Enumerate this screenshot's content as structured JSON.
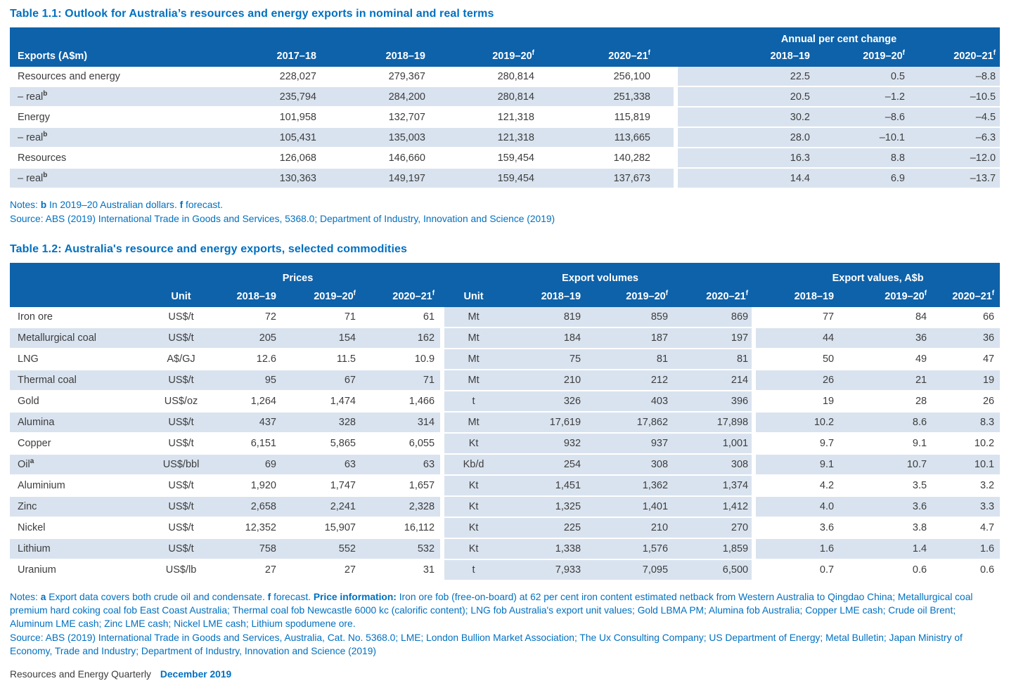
{
  "table1": {
    "title": "Table 1.1: Outlook for Australia’s resources and energy exports in nominal and real terms",
    "group_header": "Annual per cent change",
    "columns": [
      {
        "text": "Exports (A$m)",
        "sup": ""
      },
      {
        "text": "2017–18",
        "sup": ""
      },
      {
        "text": "2018–19",
        "sup": ""
      },
      {
        "text": "2019–20",
        "sup": "f"
      },
      {
        "text": "2020–21",
        "sup": "f"
      },
      {
        "text": "2018–19",
        "sup": ""
      },
      {
        "text": "2019–20",
        "sup": "f"
      },
      {
        "text": "2020–21",
        "sup": "f"
      }
    ],
    "rows": [
      {
        "label": "Resources and energy",
        "label_sup": "",
        "values": [
          "228,027",
          "279,367",
          "280,814",
          "256,100",
          "22.5",
          "0.5",
          "–8.8"
        ]
      },
      {
        "label": "– real",
        "label_sup": "b",
        "values": [
          "235,794",
          "284,200",
          "280,814",
          "251,338",
          "20.5",
          "–1.2",
          "–10.5"
        ]
      },
      {
        "label": "Energy",
        "label_sup": "",
        "values": [
          "101,958",
          "132,707",
          "121,318",
          "115,819",
          "30.2",
          "–8.6",
          "–4.5"
        ]
      },
      {
        "label": "– real",
        "label_sup": "b",
        "values": [
          "105,431",
          "135,003",
          "121,318",
          "113,665",
          "28.0",
          "–10.1",
          "–6.3"
        ]
      },
      {
        "label": "Resources",
        "label_sup": "",
        "values": [
          "126,068",
          "146,660",
          "159,454",
          "140,282",
          "16.3",
          "8.8",
          "–12.0"
        ]
      },
      {
        "label": "– real",
        "label_sup": "b",
        "values": [
          "130,363",
          "149,197",
          "159,454",
          "137,673",
          "14.4",
          "6.9",
          "–13.7"
        ]
      }
    ],
    "notes": [
      {
        "text": "Notes: ",
        "bold": false
      },
      {
        "text": "b",
        "bold": true
      },
      {
        "text": " In 2019–20 Australian dollars. ",
        "bold": false
      },
      {
        "text": "f",
        "bold": true
      },
      {
        "text": " forecast.",
        "bold": false
      }
    ],
    "source": "Source: ABS (2019) International Trade in Goods and Services, 5368.0; Department of Industry, Innovation and Science (2019)"
  },
  "table2": {
    "title": "Table 1.2: Australia's resource and energy exports, selected commodities",
    "group_headers": [
      "Prices",
      "Export volumes",
      "Export values, A$b"
    ],
    "columns": [
      {
        "text": "",
        "sup": ""
      },
      {
        "text": "Unit",
        "sup": ""
      },
      {
        "text": "2018–19",
        "sup": ""
      },
      {
        "text": "2019–20",
        "sup": "f"
      },
      {
        "text": "2020–21",
        "sup": "f"
      },
      {
        "text": "Unit",
        "sup": ""
      },
      {
        "text": "2018–19",
        "sup": ""
      },
      {
        "text": "2019–20",
        "sup": "f"
      },
      {
        "text": "2020–21",
        "sup": "f"
      },
      {
        "text": "2018–19",
        "sup": ""
      },
      {
        "text": "2019–20",
        "sup": "f"
      },
      {
        "text": "2020–21",
        "sup": "f"
      }
    ],
    "rows": [
      {
        "label": "Iron ore",
        "label_sup": "",
        "values": [
          "US$/t",
          "72",
          "71",
          "61",
          "Mt",
          "819",
          "859",
          "869",
          "77",
          "84",
          "66"
        ]
      },
      {
        "label": "Metallurgical coal",
        "label_sup": "",
        "values": [
          "US$/t",
          "205",
          "154",
          "162",
          "Mt",
          "184",
          "187",
          "197",
          "44",
          "36",
          "36"
        ]
      },
      {
        "label": "LNG",
        "label_sup": "",
        "values": [
          "A$/GJ",
          "12.6",
          "11.5",
          "10.9",
          "Mt",
          "75",
          "81",
          "81",
          "50",
          "49",
          "47"
        ]
      },
      {
        "label": "Thermal coal",
        "label_sup": "",
        "values": [
          "US$/t",
          "95",
          "67",
          "71",
          "Mt",
          "210",
          "212",
          "214",
          "26",
          "21",
          "19"
        ]
      },
      {
        "label": "Gold",
        "label_sup": "",
        "values": [
          "US$/oz",
          "1,264",
          "1,474",
          "1,466",
          "t",
          "326",
          "403",
          "396",
          "19",
          "28",
          "26"
        ]
      },
      {
        "label": "Alumina",
        "label_sup": "",
        "values": [
          "US$/t",
          "437",
          "328",
          "314",
          "Mt",
          "17,619",
          "17,862",
          "17,898",
          "10.2",
          "8.6",
          "8.3"
        ]
      },
      {
        "label": "Copper",
        "label_sup": "",
        "values": [
          "US$/t",
          "6,151",
          "5,865",
          "6,055",
          "Kt",
          "932",
          "937",
          "1,001",
          "9.7",
          "9.1",
          "10.2"
        ]
      },
      {
        "label": "Oil",
        "label_sup": "a",
        "values": [
          "US$/bbl",
          "69",
          "63",
          "63",
          "Kb/d",
          "254",
          "308",
          "308",
          "9.1",
          "10.7",
          "10.1"
        ]
      },
      {
        "label": "Aluminium",
        "label_sup": "",
        "values": [
          "US$/t",
          "1,920",
          "1,747",
          "1,657",
          "Kt",
          "1,451",
          "1,362",
          "1,374",
          "4.2",
          "3.5",
          "3.2"
        ]
      },
      {
        "label": "Zinc",
        "label_sup": "",
        "values": [
          "US$/t",
          "2,658",
          "2,241",
          "2,328",
          "Kt",
          "1,325",
          "1,401",
          "1,412",
          "4.0",
          "3.6",
          "3.3"
        ]
      },
      {
        "label": "Nickel",
        "label_sup": "",
        "values": [
          "US$/t",
          "12,352",
          "15,907",
          "16,112",
          "Kt",
          "225",
          "210",
          "270",
          "3.6",
          "3.8",
          "4.7"
        ]
      },
      {
        "label": "Lithium",
        "label_sup": "",
        "values": [
          "US$/t",
          "758",
          "552",
          "532",
          "Kt",
          "1,338",
          "1,576",
          "1,859",
          "1.6",
          "1.4",
          "1.6"
        ]
      },
      {
        "label": "Uranium",
        "label_sup": "",
        "values": [
          "US$/lb",
          "27",
          "27",
          "31",
          "t",
          "7,933",
          "7,095",
          "6,500",
          "0.7",
          "0.6",
          "0.6"
        ]
      }
    ],
    "notes": [
      {
        "text": "Notes: ",
        "bold": false
      },
      {
        "text": "a",
        "bold": true
      },
      {
        "text": " Export data covers both crude oil and condensate. ",
        "bold": false
      },
      {
        "text": "f",
        "bold": true
      },
      {
        "text": " forecast. ",
        "bold": false
      },
      {
        "text": "Price information:",
        "bold": true
      },
      {
        "text": " Iron ore fob (free-on-board) at 62 per cent iron content estimated netback from Western Australia to Qingdao China; Metallurgical coal premium hard coking coal fob East Coast Australia; Thermal coal fob Newcastle 6000 kc (calorific content); LNG fob Australia's export unit values; Gold LBMA PM; Alumina fob Australia; Copper LME cash; Crude oil Brent; Aluminum LME cash; Zinc LME cash; Nickel LME cash; Lithium spodumene ore.",
        "bold": false
      }
    ],
    "source": "Source: ABS (2019) International Trade in Goods and Services, Australia, Cat. No. 5368.0; LME; London Bullion Market Association; The Ux Consulting Company; US Department of Energy; Metal Bulletin; Japan Ministry of Economy, Trade and Industry; Department of Industry, Innovation and Science (2019)"
  },
  "footer": {
    "publication": "Resources and Energy Quarterly",
    "edition": "December 2019"
  },
  "colors": {
    "header_blue": "#0E62A9",
    "row_shade": "#D9E3EF",
    "accent_blue": "#0070C0",
    "body_text": "#3D3D3D"
  }
}
